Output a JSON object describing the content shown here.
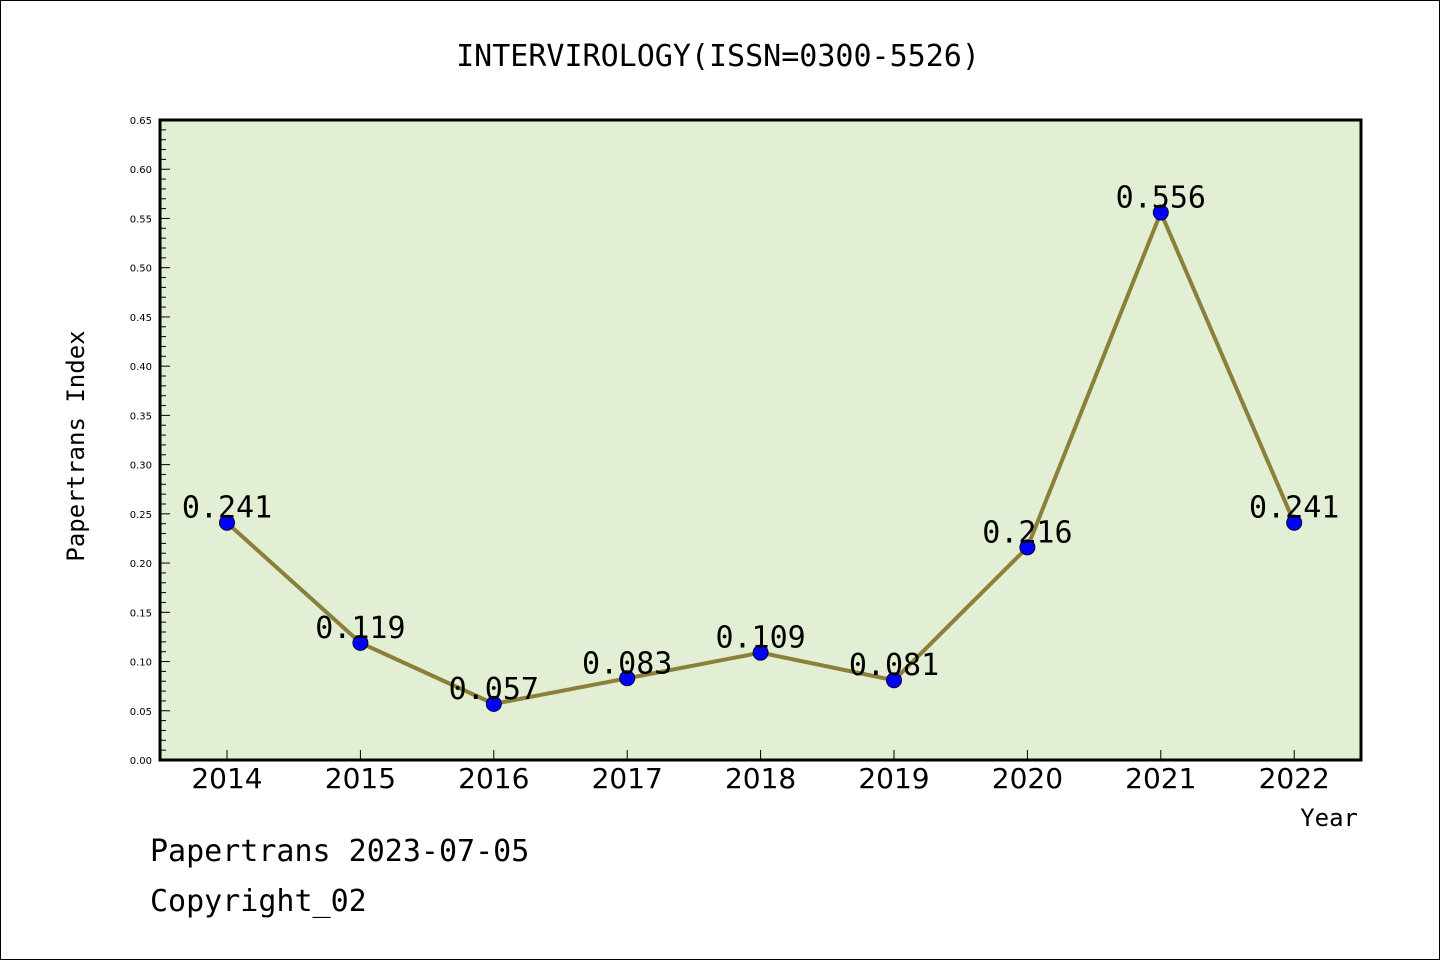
{
  "chart_data": {
    "type": "line",
    "title": "INTERVIROLOGY(ISSN=0300-5526)",
    "xlabel": "Year",
    "ylabel": "Papertrans Index",
    "categories": [
      "2014",
      "2015",
      "2016",
      "2017",
      "2018",
      "2019",
      "2020",
      "2021",
      "2022"
    ],
    "series": [
      {
        "values": [
          0.241,
          0.119,
          0.057,
          0.083,
          0.109,
          0.081,
          0.216,
          0.556,
          0.241
        ],
        "data_labels": [
          "0.241",
          "0.119",
          "0.057",
          "0.083",
          "0.109",
          "0.081",
          "0.216",
          "0.556",
          "0.241"
        ]
      }
    ],
    "ylim": [
      0,
      0.65
    ],
    "yticks": [
      "0.00",
      "0.05",
      "0.10",
      "0.15",
      "0.20",
      "0.25",
      "0.30",
      "0.35",
      "0.40",
      "0.45",
      "0.50",
      "0.55",
      "0.60",
      "0.65"
    ],
    "grid": false,
    "legend": "none",
    "colors": {
      "plot_background": "#e2efd4",
      "line": "#8b8039",
      "marker": "#0000ff"
    }
  },
  "footer": {
    "date_line": "Papertrans 2023-07-05",
    "copyright": "Copyright_02"
  }
}
